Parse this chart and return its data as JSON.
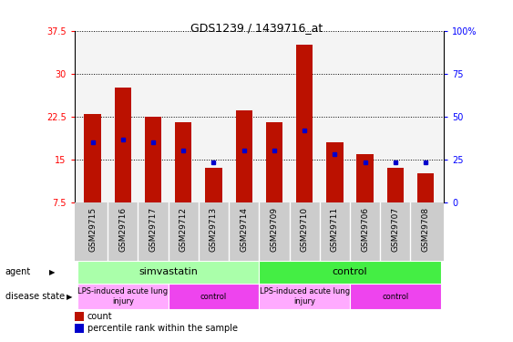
{
  "title": "GDS1239 / 1439716_at",
  "samples": [
    "GSM29715",
    "GSM29716",
    "GSM29717",
    "GSM29712",
    "GSM29713",
    "GSM29714",
    "GSM29709",
    "GSM29710",
    "GSM29711",
    "GSM29706",
    "GSM29707",
    "GSM29708"
  ],
  "bar_heights": [
    23.0,
    27.5,
    22.5,
    21.5,
    13.5,
    23.5,
    21.5,
    35.0,
    18.0,
    16.0,
    13.5,
    12.5
  ],
  "blue_values": [
    18.0,
    18.5,
    18.0,
    16.5,
    14.5,
    16.5,
    16.5,
    20.0,
    16.0,
    14.5,
    14.5,
    14.5
  ],
  "bar_bottom": 7.5,
  "ylim_left": [
    7.5,
    37.5
  ],
  "ylim_right": [
    0,
    100
  ],
  "yticks_left": [
    7.5,
    15.0,
    22.5,
    30.0,
    37.5
  ],
  "ytick_labels_left": [
    "7.5",
    "15",
    "22.5",
    "30",
    "37.5"
  ],
  "yticks_right": [
    0,
    25,
    50,
    75,
    100
  ],
  "ytick_labels_right": [
    "0",
    "25",
    "50",
    "75",
    "100%"
  ],
  "bar_color": "#bb1100",
  "blue_color": "#0000cc",
  "grid_color": "#000000",
  "plot_bg": "#f4f4f4",
  "agent_groups": [
    {
      "label": "simvastatin",
      "start": 0,
      "end": 6,
      "color": "#aaffaa"
    },
    {
      "label": "control",
      "start": 6,
      "end": 12,
      "color": "#44ee44"
    }
  ],
  "disease_groups": [
    {
      "label": "LPS-induced acute lung\ninjury",
      "start": 0,
      "end": 3,
      "color": "#ffaaff"
    },
    {
      "label": "control",
      "start": 3,
      "end": 6,
      "color": "#ee44ee"
    },
    {
      "label": "LPS-induced acute lung\ninjury",
      "start": 6,
      "end": 9,
      "color": "#ffaaff"
    },
    {
      "label": "control",
      "start": 9,
      "end": 12,
      "color": "#ee44ee"
    }
  ],
  "legend_count_label": "count",
  "legend_percentile_label": "percentile rank within the sample",
  "agent_label": "agent",
  "disease_label": "disease state",
  "bar_width": 0.55
}
